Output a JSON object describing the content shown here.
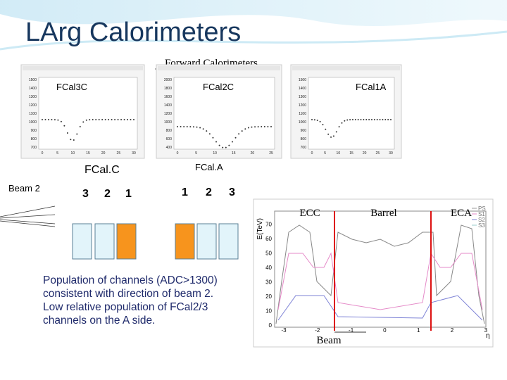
{
  "title": "LArg Calorimeters",
  "subtitle": "Forward Calorimeters",
  "plots": [
    {
      "label": "FCal3C",
      "yticks": [
        "1500",
        "1400",
        "1300",
        "1200",
        "1100",
        "1000",
        "900",
        "800",
        "700"
      ],
      "xticks": [
        "0",
        "5",
        "10",
        "15",
        "20",
        "25",
        "30"
      ]
    },
    {
      "label": "FCal2C",
      "yticks": [
        "2000",
        "1800",
        "1600",
        "1400",
        "1200",
        "1000",
        "800",
        "600",
        "400"
      ],
      "xticks": [
        "0",
        "5",
        "10",
        "15",
        "20",
        "25"
      ]
    },
    {
      "label": "FCal1A",
      "yticks": [
        "1500",
        "1400",
        "1300",
        "1200",
        "1100",
        "1000",
        "900",
        "800",
        "700"
      ],
      "xticks": [
        "0",
        "5",
        "10",
        "15",
        "20",
        "25",
        "30"
      ]
    }
  ],
  "diagram": {
    "side_c": "FCal.C",
    "side_a": "FCal.A",
    "beam": "Beam 2",
    "c_modules": [
      "3",
      "2",
      "1"
    ],
    "a_modules": [
      "1",
      "2",
      "3"
    ]
  },
  "note": [
    "Population of channels (ADC>1300)",
    "consistent with direction of beam 2.",
    "Low relative population of FCal2/3",
    "channels on the A side."
  ],
  "energy_plot": {
    "y_label": "E(TeV)",
    "x_label": "η",
    "regions": [
      "ECC",
      "Barrel",
      "ECA"
    ],
    "beam": "Beam",
    "yticks": [
      "0",
      "10",
      "20",
      "30",
      "40",
      "50",
      "60",
      "70"
    ],
    "xticks": [
      "-3",
      "-2",
      "-1",
      "0",
      "1",
      "2",
      "3"
    ],
    "legend": [
      "PS",
      "S1",
      "S2",
      "S3"
    ]
  }
}
